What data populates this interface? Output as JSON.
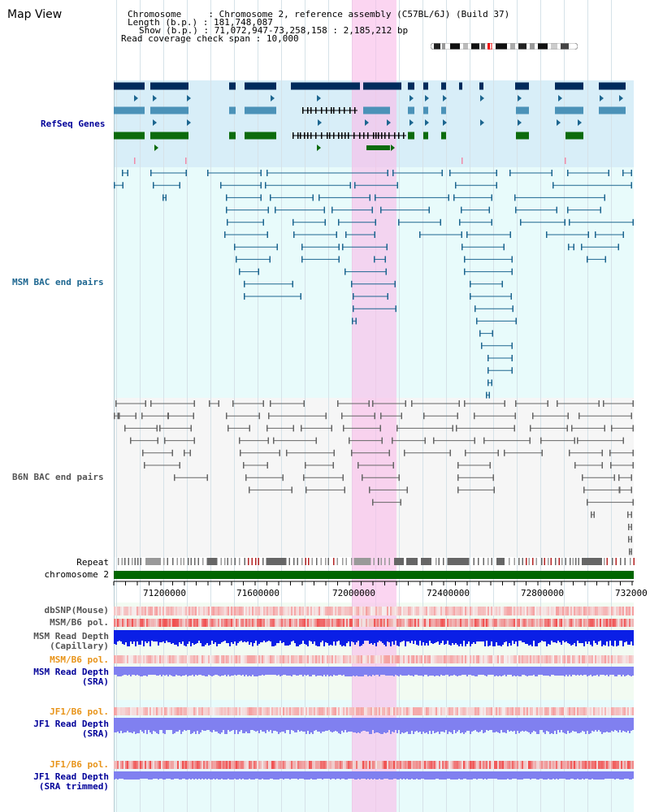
{
  "title": "Map View",
  "info": {
    "chromosome_label": "Chromosome",
    "chromosome_value": "Chromosome 2, reference assembly (C57BL/6J) (Build 37)",
    "length_label": "Length (b.p.)",
    "length_value": "181,748,087",
    "show_label": "Show (b.p.)",
    "show_value": "71,072,947-73,258,158 : 2,185,212 bp",
    "coverage_label": "Read coverage check span",
    "coverage_value": "10,000"
  },
  "tracks": {
    "refseq": "RefSeq Genes",
    "msm_bac": "MSM BAC end pairs",
    "b6n_bac": "B6N BAC end pairs",
    "repeat": "Repeat",
    "chromosome": "chromosome 2",
    "dbsnp": "dbSNP(Mouse)",
    "msm_b6_pol_1": "MSM/B6 pol.",
    "msm_depth_cap_1": "MSM Read Depth",
    "msm_depth_cap_2": "(Capillary)",
    "msm_b6_pol_2": "MSM/B6 pol.",
    "msm_depth_sra_1": "MSM Read Depth",
    "msm_depth_sra_2": "(SRA)",
    "jf1_b6_pol_1": "JF1/B6 pol.",
    "jf1_depth_sra_1": "JF1 Read Depth",
    "jf1_depth_sra_2": "(SRA)",
    "jf1_b6_pol_2": "JF1/B6 pol.",
    "jf1_depth_trim_1": "JF1 Read Depth",
    "jf1_depth_trim_2": "(SRA trimmed)"
  },
  "axis": {
    "ticks": [
      "71200000",
      "71600000",
      "72000000",
      "72400000",
      "72800000",
      "732000"
    ]
  },
  "colors": {
    "refseq_bg": "#d8eef8",
    "msm_bg": "#e8fbfb",
    "b6n_bg": "#f6f6f6",
    "highlight": "#f9c8ea",
    "msm_label": "#1d6690",
    "b6n_label": "#555555",
    "orange_label": "#e8941a",
    "blue_label": "#000099",
    "chromosome_bar": "#006600"
  }
}
